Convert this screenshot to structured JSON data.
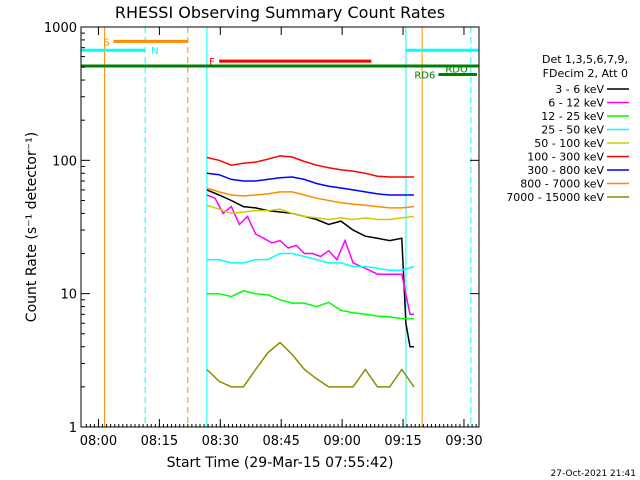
{
  "chart_data": {
    "type": "line",
    "title": "RHESSI Observing Summary Count Rates",
    "xlabel": "Start Time (29-Mar-15 07:55:42)",
    "ylabel": "Count Rate (s⁻¹ detector⁻¹)",
    "x_unit": "minutes after 07:55:42",
    "xlim": [
      0,
      98
    ],
    "ylim": [
      1,
      1000
    ],
    "yscale": "log",
    "grid": false,
    "x_ticks": [
      {
        "x": 4.3,
        "label": "08:00"
      },
      {
        "x": 19.3,
        "label": "08:15"
      },
      {
        "x": 34.3,
        "label": "08:30"
      },
      {
        "x": 49.3,
        "label": "08:45"
      },
      {
        "x": 64.3,
        "label": "09:00"
      },
      {
        "x": 79.3,
        "label": "09:15"
      },
      {
        "x": 94.3,
        "label": "09:30"
      }
    ],
    "y_ticks": [
      {
        "y": 1,
        "label": "1"
      },
      {
        "y": 10,
        "label": "10"
      },
      {
        "y": 100,
        "label": "100"
      },
      {
        "y": 1000,
        "label": "1000"
      }
    ],
    "legend": {
      "placement": "right",
      "header": [
        "Det 1,3,5,6,7,9,",
        "FDecim 2, Att 0"
      ]
    },
    "series": [
      {
        "name": "3 - 6 keV",
        "color": "#000000",
        "x": [
          31,
          34,
          37,
          40,
          43,
          46,
          49,
          52,
          55,
          58,
          61,
          64,
          67,
          70,
          73,
          76,
          79,
          80,
          81,
          82
        ],
        "y": [
          60,
          55,
          50,
          45,
          44,
          42,
          41,
          40,
          38,
          36,
          33,
          35,
          30,
          27,
          26,
          25,
          26,
          6,
          4,
          4
        ]
      },
      {
        "name": "6 - 12 keV",
        "color": "#ff00ff",
        "x": [
          31,
          33,
          35,
          37,
          39,
          41,
          43,
          45,
          47,
          49,
          51,
          53,
          55,
          57,
          59,
          61,
          63,
          65,
          67,
          69,
          71,
          73,
          75,
          77,
          79,
          81,
          82
        ],
        "y": [
          55,
          52,
          40,
          45,
          33,
          38,
          28,
          26,
          24,
          25,
          22,
          23,
          20,
          20,
          19,
          21,
          18,
          25,
          17,
          16,
          15,
          14,
          14,
          14,
          14,
          7,
          7
        ]
      },
      {
        "name": "12 - 25 keV",
        "color": "#00ff00",
        "x": [
          31,
          34,
          37,
          40,
          43,
          46,
          49,
          52,
          55,
          58,
          61,
          64,
          67,
          70,
          73,
          76,
          79,
          82
        ],
        "y": [
          10,
          10,
          9.5,
          10.5,
          10,
          9.8,
          9,
          8.5,
          8.5,
          8,
          8.6,
          7.5,
          7.2,
          7,
          6.8,
          6.7,
          6.5,
          6.5
        ]
      },
      {
        "name": "25 - 50 keV",
        "color": "#00ffff",
        "x": [
          31,
          34,
          37,
          40,
          43,
          46,
          49,
          52,
          55,
          58,
          61,
          64,
          67,
          70,
          73,
          76,
          79,
          82
        ],
        "y": [
          18,
          18,
          17,
          17,
          18,
          18,
          20,
          20,
          19,
          18,
          17,
          17,
          16,
          16,
          15.5,
          15,
          15,
          16
        ]
      },
      {
        "name": "50 - 100 keV",
        "color": "#d4c800",
        "x": [
          31,
          34,
          37,
          40,
          43,
          46,
          49,
          52,
          55,
          58,
          61,
          64,
          67,
          70,
          73,
          76,
          79,
          82
        ],
        "y": [
          46,
          43,
          40,
          41,
          42,
          42,
          43,
          40,
          38,
          37,
          36,
          37,
          36,
          37,
          36,
          36,
          37,
          38
        ]
      },
      {
        "name": "100 - 300 keV",
        "color": "#ff0000",
        "x": [
          31,
          34,
          37,
          40,
          43,
          46,
          49,
          52,
          55,
          58,
          61,
          64,
          67,
          70,
          73,
          76,
          79,
          82
        ],
        "y": [
          105,
          100,
          92,
          95,
          97,
          102,
          108,
          106,
          98,
          92,
          88,
          85,
          83,
          80,
          76,
          75,
          75,
          75
        ]
      },
      {
        "name": "300 - 800 keV",
        "color": "#0000ff",
        "x": [
          31,
          34,
          37,
          40,
          43,
          46,
          49,
          52,
          55,
          58,
          61,
          64,
          67,
          70,
          73,
          76,
          79,
          82
        ],
        "y": [
          80,
          78,
          72,
          70,
          70,
          72,
          74,
          75,
          72,
          67,
          64,
          62,
          60,
          58,
          56,
          55,
          55,
          55
        ]
      },
      {
        "name": "800 - 7000 keV",
        "color": "#ff8c00",
        "x": [
          31,
          34,
          37,
          40,
          43,
          46,
          49,
          52,
          55,
          58,
          61,
          64,
          67,
          70,
          73,
          76,
          79,
          82
        ],
        "y": [
          62,
          58,
          55,
          54,
          55,
          56,
          58,
          58,
          55,
          52,
          50,
          48,
          47,
          46,
          45,
          44,
          44,
          45
        ]
      },
      {
        "name": "7000 - 15000 keV",
        "color": "#8b8b00",
        "x": [
          31,
          34,
          37,
          40,
          43,
          46,
          49,
          52,
          55,
          58,
          61,
          64,
          67,
          70,
          73,
          76,
          79,
          82
        ],
        "y": [
          2.7,
          2.2,
          2.0,
          2.0,
          2.7,
          3.6,
          4.3,
          3.5,
          2.7,
          2.3,
          2.0,
          2.0,
          2.0,
          2.7,
          2.0,
          2.0,
          2.7,
          2.0
        ]
      }
    ],
    "vertical_lines": [
      {
        "x": 5.8,
        "color": "#ff8c00",
        "style": "solid"
      },
      {
        "x": 15.8,
        "color": "#00ffff",
        "style": "dashed"
      },
      {
        "x": 26.3,
        "color": "#ff8c00",
        "style": "dashed"
      },
      {
        "x": 31.0,
        "color": "#00ffff",
        "style": "solid"
      },
      {
        "x": 80.0,
        "color": "#00ffff",
        "style": "solid"
      },
      {
        "x": 84.0,
        "color": "#ff8c00",
        "style": "solid"
      },
      {
        "x": 96.0,
        "color": "#00ffff",
        "style": "dashed"
      }
    ],
    "annotations": [
      {
        "label": "S",
        "color": "#ff8c00",
        "x1": 8.0,
        "x2": 26.3,
        "y": 780
      },
      {
        "label": "N",
        "color": "#00ffff",
        "x1": 0,
        "x2": 15.8,
        "y": 670
      },
      {
        "label": "F",
        "color": "#ff0000",
        "x1": 34.0,
        "x2": 71.5,
        "y": 555
      },
      {
        "label": "",
        "color": "#00ffff",
        "x1": 80.0,
        "x2": 98,
        "y": 670
      },
      {
        "label": "",
        "color": "#008000",
        "x1": 0,
        "x2": 98,
        "y": 510
      },
      {
        "label": "RDO",
        "color": "#008000",
        "x1": 96,
        "x2": 96,
        "y": 490
      },
      {
        "label": "RD6",
        "color": "#008000",
        "x1": 88,
        "x2": 97.5,
        "y": 440
      }
    ]
  },
  "timestamp": "27-Oct-2021 21:41"
}
